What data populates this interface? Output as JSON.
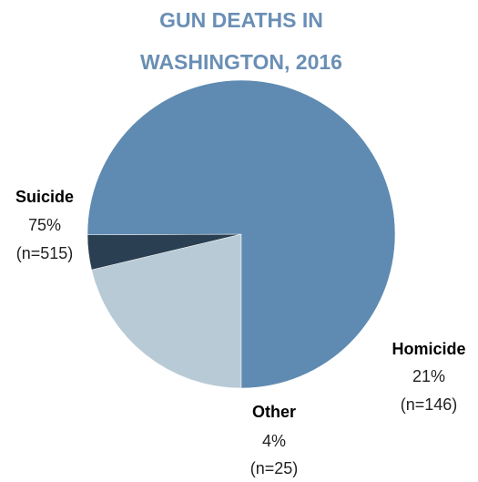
{
  "chart_data": {
    "type": "pie",
    "title_lines": [
      "GUN DEATHS IN",
      "WASHINGTON, 2016"
    ],
    "start_angle_deg": 90,
    "slices": [
      {
        "name": "Homicide",
        "percent_label": "21%",
        "count_label": "(n=146)",
        "value": 146,
        "color": "#b8cad6"
      },
      {
        "name": "Other",
        "percent_label": "4%",
        "count_label": "(n=25)",
        "value": 25,
        "color": "#2b3f52"
      },
      {
        "name": "Suicide",
        "percent_label": "75%",
        "count_label": "(n=515)",
        "value": 515,
        "color": "#5f8bb2"
      }
    ],
    "colors": {
      "title": "#6a8fb5"
    }
  }
}
